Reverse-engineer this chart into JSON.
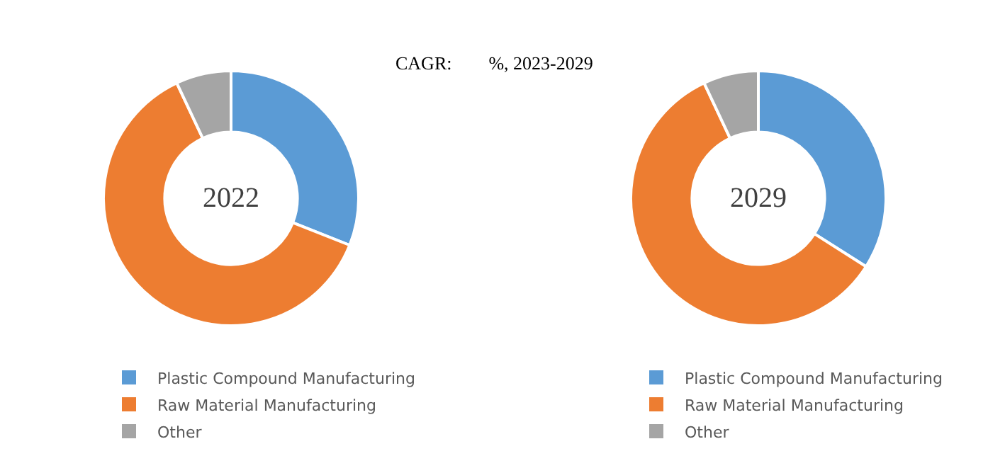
{
  "chart_data": [
    {
      "type": "donut",
      "title": "2022",
      "annotations": [
        "CAGR:        %, 2023-2029"
      ],
      "categories": [
        "Plastic Compound Manufacturing",
        "Raw Material Manufacturing",
        "Other"
      ],
      "values": [
        31,
        62,
        7
      ],
      "colors": [
        "#5b9bd5",
        "#ed7d31",
        "#a5a5a5"
      ],
      "legend": "bottom"
    },
    {
      "type": "donut",
      "title": "2029",
      "categories": [
        "Plastic Compound Manufacturing",
        "Raw Material Manufacturing",
        "Other"
      ],
      "values": [
        34,
        59,
        7
      ],
      "colors": [
        "#5b9bd5",
        "#ed7d31",
        "#a5a5a5"
      ],
      "legend": "bottom"
    }
  ]
}
